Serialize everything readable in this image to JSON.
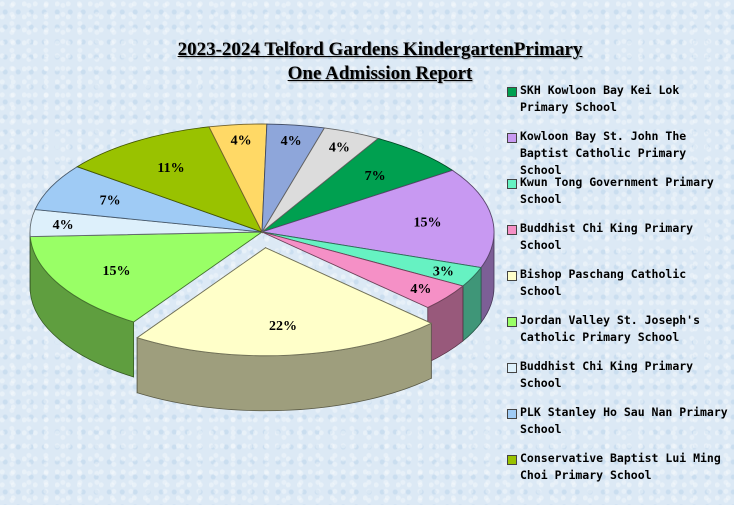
{
  "chart_data": {
    "type": "pie",
    "title_line1": "2023-2024 Telford Gardens KindergartenPrimary",
    "title_line2": "One Admission Report",
    "slices": [
      {
        "label": "SKH Kowloon Bay Kei Lok Primary School",
        "value": 7,
        "display": "7%",
        "color": "#00a050"
      },
      {
        "label": "Kowloon Bay St. John The Baptist Catholic Primary School",
        "value": 15,
        "display": "15%",
        "color": "#c899f2"
      },
      {
        "label": "Kwun Tong Government Primary School",
        "value": 3,
        "display": "3%",
        "color": "#66f2c2"
      },
      {
        "label": "Buddhist Chi King Primary School",
        "value": 4,
        "display": "4%",
        "color": "#f590c6"
      },
      {
        "label": "Bishop Paschang Catholic School",
        "value": 22,
        "display": "22%",
        "color": "#ffffc9"
      },
      {
        "label": "Jordan Valley St. Joseph's Catholic Primary School",
        "value": 15,
        "display": "15%",
        "color": "#99ff66"
      },
      {
        "label": "Buddhist Chi King Primary School",
        "value": 4,
        "display": "4%",
        "color": "#ddf0fb"
      },
      {
        "label": "PLK Stanley Ho Sau Nan Primary School",
        "value": 7,
        "display": "7%",
        "color": "#9fcbf5"
      },
      {
        "label": "Conservative Baptist Lui Ming Choi Primary School",
        "value": 11,
        "display": "11%",
        "color": "#99c200"
      },
      {
        "label": "",
        "value": 4,
        "display": "4%",
        "color": "#ffd966"
      },
      {
        "label": "",
        "value": 4,
        "display": "4%",
        "color": "#8ea6da"
      },
      {
        "label": "",
        "value": 4,
        "display": "4%",
        "color": "#dcdcdc"
      }
    ],
    "legend_position": "right"
  }
}
